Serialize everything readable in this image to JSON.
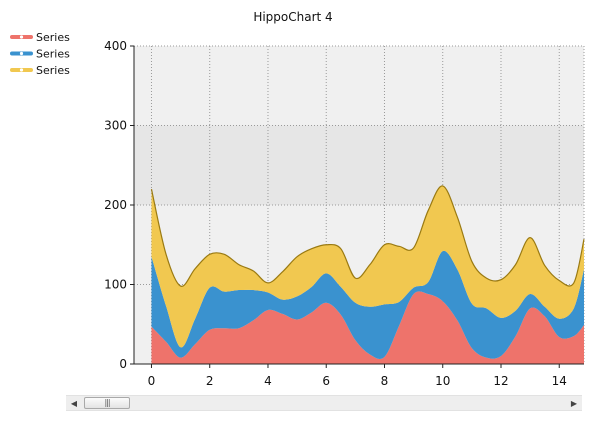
{
  "chart_data": {
    "type": "area",
    "stacked": true,
    "title": "HippoChart 4",
    "x": [
      0,
      0.5,
      1,
      1.5,
      2,
      2.5,
      3,
      3.5,
      4,
      4.5,
      5,
      5.5,
      6,
      6.5,
      7,
      7.5,
      8,
      8.5,
      9,
      9.5,
      10,
      10.5,
      11,
      11.5,
      12,
      12.5,
      13,
      13.5,
      14,
      14.5,
      14.85
    ],
    "series": [
      {
        "name": "Series",
        "color": "#ee736b",
        "values": [
          47,
          28,
          8,
          25,
          43,
          45,
          45,
          55,
          68,
          63,
          56,
          65,
          77,
          62,
          30,
          12,
          9,
          48,
          88,
          88,
          79,
          55,
          20,
          8,
          10,
          35,
          70,
          60,
          34,
          35,
          49
        ]
      },
      {
        "name": "Series",
        "color": "#3a92cf",
        "values": [
          88,
          45,
          13,
          32,
          53,
          46,
          48,
          38,
          22,
          18,
          29,
          32,
          37,
          35,
          47,
          60,
          66,
          30,
          8,
          15,
          63,
          64,
          56,
          62,
          48,
          32,
          18,
          12,
          23,
          35,
          70
        ]
      },
      {
        "name": "Series",
        "color": "#f1c850",
        "values": [
          85,
          65,
          77,
          63,
          42,
          47,
          32,
          24,
          12,
          35,
          50,
          48,
          36,
          48,
          31,
          53,
          75,
          70,
          50,
          90,
          82,
          66,
          53,
          38,
          48,
          58,
          71,
          52,
          48,
          32,
          38
        ]
      }
    ],
    "xlim": [
      -0.6,
      14.85
    ],
    "ylim": [
      0,
      400
    ],
    "x_ticks": [
      "0",
      "2",
      "4",
      "6",
      "8",
      "10",
      "12",
      "14"
    ],
    "y_ticks": [
      "0",
      "100",
      "200",
      "300",
      "400"
    ],
    "grid": true,
    "legend_position": "top-left"
  },
  "colors": {
    "plot_background": "#f0f0f0",
    "highlight_band": "#e6e6e6",
    "gridline": "#9a9a9a",
    "top_series_line": "#9a7a12"
  }
}
